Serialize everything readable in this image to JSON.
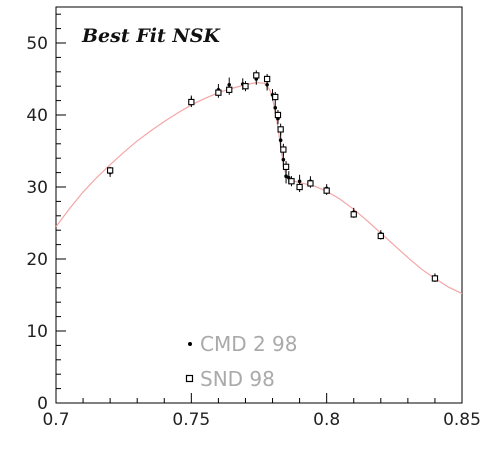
{
  "chart_data": {
    "type": "scatter",
    "title": "Best Fit NSK",
    "xlabel": "",
    "ylabel": "",
    "xlim": [
      0.7,
      0.85
    ],
    "ylim": [
      0,
      55
    ],
    "x_ticks": [
      0.7,
      0.75,
      0.8,
      0.85
    ],
    "x_tick_labels": [
      "0.7",
      "0.75",
      "0.8",
      "0.85"
    ],
    "y_ticks": [
      0,
      10,
      20,
      30,
      40,
      50
    ],
    "y_tick_labels": [
      "0",
      "10",
      "20",
      "30",
      "40",
      "50"
    ],
    "grid": false,
    "legend_position": "bottom-center",
    "fit_color": "#f4a6a6",
    "series": [
      {
        "name": "CMD 2 98",
        "marker": "dot",
        "points": [
          {
            "x": 0.72,
            "y": 32.0,
            "err": 0.6
          },
          {
            "x": 0.75,
            "y": 42.0,
            "err": 0.7
          },
          {
            "x": 0.76,
            "y": 43.5,
            "err": 0.8
          },
          {
            "x": 0.764,
            "y": 44.2,
            "err": 1.0
          },
          {
            "x": 0.769,
            "y": 44.3,
            "err": 0.8
          },
          {
            "x": 0.774,
            "y": 45.0,
            "err": 0.8
          },
          {
            "x": 0.778,
            "y": 44.2,
            "err": 0.8
          },
          {
            "x": 0.78,
            "y": 42.8,
            "err": 0.8
          },
          {
            "x": 0.781,
            "y": 41.0,
            "err": 0.8
          },
          {
            "x": 0.782,
            "y": 39.5,
            "err": 0.8
          },
          {
            "x": 0.783,
            "y": 36.5,
            "err": 1.0
          },
          {
            "x": 0.784,
            "y": 33.8,
            "err": 1.0
          },
          {
            "x": 0.785,
            "y": 31.5,
            "err": 1.0
          },
          {
            "x": 0.786,
            "y": 31.3,
            "err": 0.9
          },
          {
            "x": 0.79,
            "y": 30.8,
            "err": 0.9
          },
          {
            "x": 0.794,
            "y": 30.8,
            "err": 0.7
          },
          {
            "x": 0.8,
            "y": 29.8,
            "err": 0.6
          },
          {
            "x": 0.81,
            "y": 26.5,
            "err": 0.6
          },
          {
            "x": 0.82,
            "y": 23.5,
            "err": 0.5
          },
          {
            "x": 0.84,
            "y": 17.5,
            "err": 0.5
          }
        ]
      },
      {
        "name": "SND 98",
        "marker": "open-square",
        "points": [
          {
            "x": 0.72,
            "y": 32.3,
            "err": 0.5
          },
          {
            "x": 0.75,
            "y": 41.8,
            "err": 0.7
          },
          {
            "x": 0.76,
            "y": 43.1,
            "err": 0.7
          },
          {
            "x": 0.764,
            "y": 43.5,
            "err": 0.7
          },
          {
            "x": 0.77,
            "y": 44.0,
            "err": 0.7
          },
          {
            "x": 0.774,
            "y": 45.5,
            "err": 0.7
          },
          {
            "x": 0.778,
            "y": 45.0,
            "err": 0.7
          },
          {
            "x": 0.781,
            "y": 42.5,
            "err": 0.7
          },
          {
            "x": 0.782,
            "y": 40.0,
            "err": 0.7
          },
          {
            "x": 0.783,
            "y": 38.0,
            "err": 0.8
          },
          {
            "x": 0.784,
            "y": 35.2,
            "err": 0.8
          },
          {
            "x": 0.785,
            "y": 32.8,
            "err": 0.8
          },
          {
            "x": 0.787,
            "y": 30.8,
            "err": 0.7
          },
          {
            "x": 0.79,
            "y": 30.0,
            "err": 0.7
          },
          {
            "x": 0.794,
            "y": 30.5,
            "err": 0.6
          },
          {
            "x": 0.8,
            "y": 29.5,
            "err": 0.6
          },
          {
            "x": 0.81,
            "y": 26.2,
            "err": 0.5
          },
          {
            "x": 0.82,
            "y": 23.2,
            "err": 0.5
          },
          {
            "x": 0.84,
            "y": 17.3,
            "err": 0.5
          }
        ]
      }
    ],
    "fit_curve": {
      "points": [
        [
          0.7,
          24.5
        ],
        [
          0.705,
          27.0
        ],
        [
          0.71,
          29.3
        ],
        [
          0.715,
          31.3
        ],
        [
          0.72,
          33.1
        ],
        [
          0.725,
          34.8
        ],
        [
          0.73,
          36.4
        ],
        [
          0.735,
          37.8
        ],
        [
          0.74,
          39.1
        ],
        [
          0.745,
          40.3
        ],
        [
          0.75,
          41.4
        ],
        [
          0.755,
          42.3
        ],
        [
          0.76,
          43.1
        ],
        [
          0.765,
          43.7
        ],
        [
          0.77,
          44.2
        ],
        [
          0.774,
          44.5
        ],
        [
          0.777,
          44.4
        ],
        [
          0.779,
          43.5
        ],
        [
          0.78,
          42.3
        ],
        [
          0.781,
          40.5
        ],
        [
          0.782,
          38.2
        ],
        [
          0.783,
          35.6
        ],
        [
          0.784,
          33.2
        ],
        [
          0.785,
          31.6
        ],
        [
          0.787,
          30.9
        ],
        [
          0.79,
          30.6
        ],
        [
          0.795,
          30.2
        ],
        [
          0.8,
          29.4
        ],
        [
          0.805,
          28.3
        ],
        [
          0.81,
          26.9
        ],
        [
          0.815,
          25.3
        ],
        [
          0.82,
          23.6
        ],
        [
          0.825,
          21.9
        ],
        [
          0.83,
          20.2
        ],
        [
          0.835,
          18.6
        ],
        [
          0.84,
          17.3
        ],
        [
          0.845,
          16.1
        ],
        [
          0.85,
          15.2
        ]
      ]
    }
  }
}
